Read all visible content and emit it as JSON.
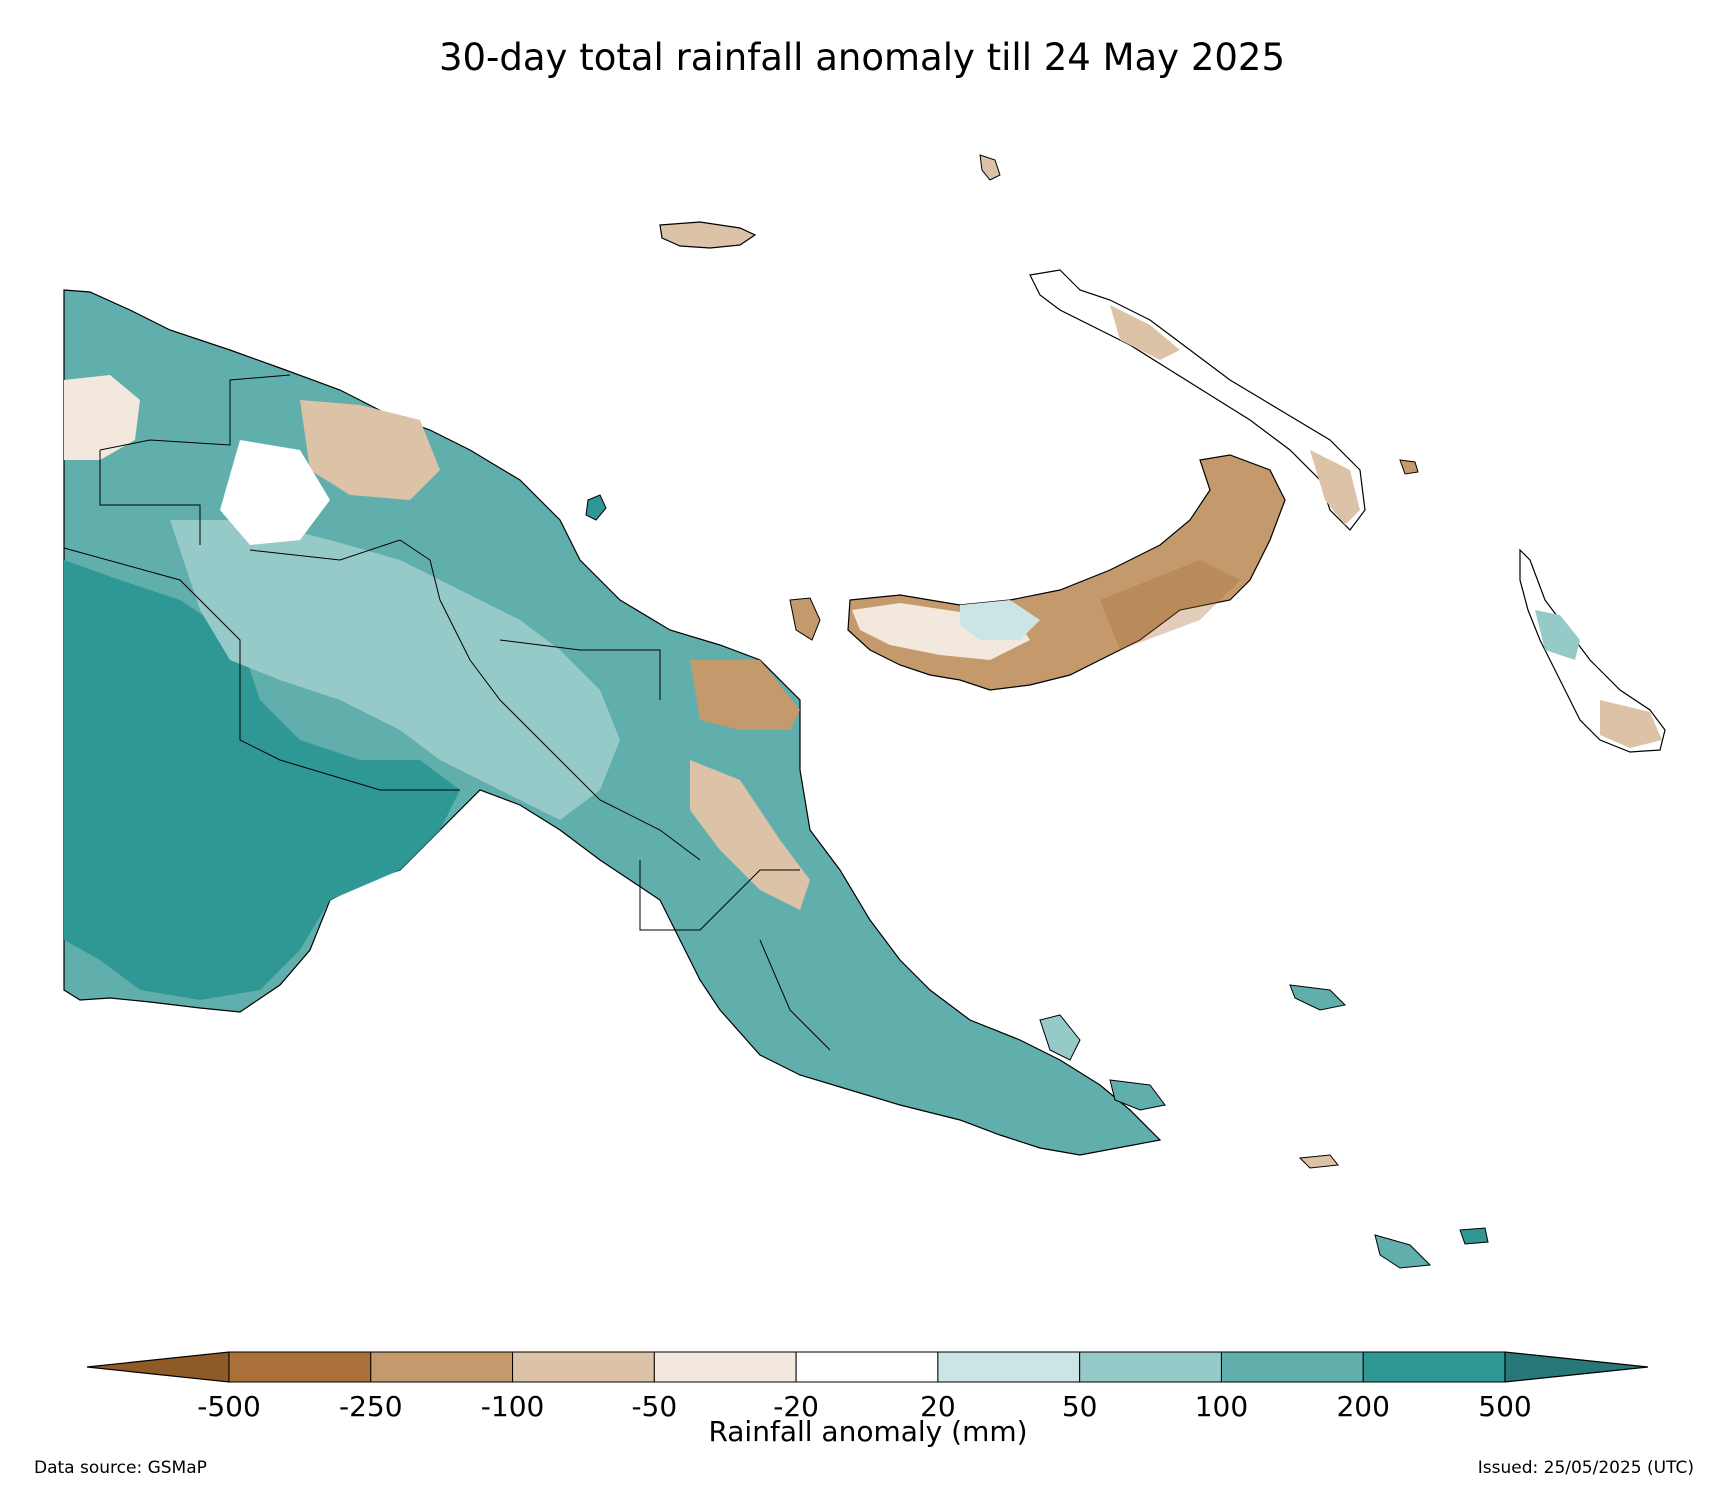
{
  "title": "30-day total rainfall anomaly till 24 May 2025",
  "colorbar": {
    "label": "Rainfall anomaly (mm)",
    "ticks": [
      "-500",
      "-250",
      "-100",
      "-50",
      "-20",
      "20",
      "50",
      "100",
      "200",
      "500"
    ],
    "low_extend_color": "#8e5a28",
    "high_extend_color": "#28787a",
    "bin_colors": [
      "#a9703a",
      "#c49a6c",
      "#dcc2a6",
      "#f2e8de",
      "#ffffff",
      "#cbe5e4",
      "#96cac9",
      "#60afad",
      "#2f9895"
    ]
  },
  "footer": {
    "source": "Data source: GSMaP",
    "issued": "Issued: 25/05/2025 (UTC)"
  },
  "map": {
    "outline_color": "#000000",
    "regions": [
      {
        "name": "western-mainland",
        "category": "200 to 500"
      },
      {
        "name": "southern-coast",
        "category": "100 to 200"
      },
      {
        "name": "highlands",
        "category": "50 to 100"
      },
      {
        "name": "northern-coast",
        "category": "-100 to -20"
      },
      {
        "name": "new-britain",
        "category": "-250 to -50"
      },
      {
        "name": "new-ireland",
        "category": "-100 to 20"
      },
      {
        "name": "bougainville",
        "category": "-100 to 50"
      },
      {
        "name": "milne-bay",
        "category": "100 to 200"
      }
    ]
  }
}
